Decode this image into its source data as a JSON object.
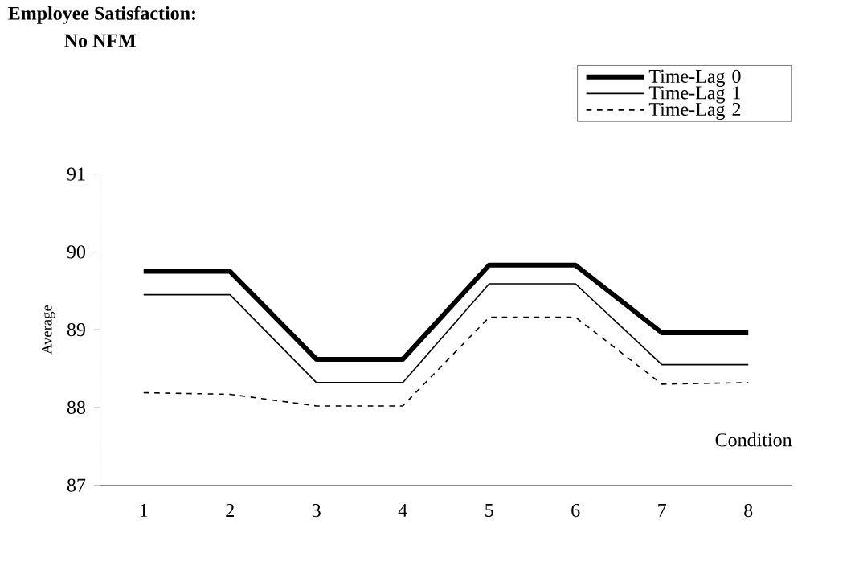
{
  "chart_data": {
    "type": "line",
    "title": "Employee Satisfaction:",
    "subtitle": "No NFM",
    "xlabel": "Condition",
    "ylabel": "Average",
    "categories": [
      "1",
      "2",
      "3",
      "4",
      "5",
      "6",
      "7",
      "8"
    ],
    "series": [
      {
        "name": "Time-Lag 0",
        "color": "#000000",
        "line_style": "solid",
        "values": [
          89.75,
          89.75,
          88.62,
          88.62,
          89.83,
          89.83,
          88.96,
          88.96
        ]
      },
      {
        "name": "Time-Lag 1",
        "color": "#000000",
        "line_style": "solid",
        "values": [
          89.45,
          89.45,
          88.32,
          88.32,
          89.59,
          89.59,
          88.55,
          88.55
        ]
      },
      {
        "name": "Time-Lag 2",
        "color": "#000000",
        "line_style": "dashed",
        "values": [
          88.19,
          88.17,
          88.02,
          88.02,
          89.16,
          89.16,
          88.3,
          88.32
        ]
      }
    ],
    "ylim": [
      87,
      91
    ],
    "yticks": [
      87,
      88,
      89,
      90,
      91
    ],
    "grid": false,
    "legend": "top right",
    "marker": "none"
  }
}
